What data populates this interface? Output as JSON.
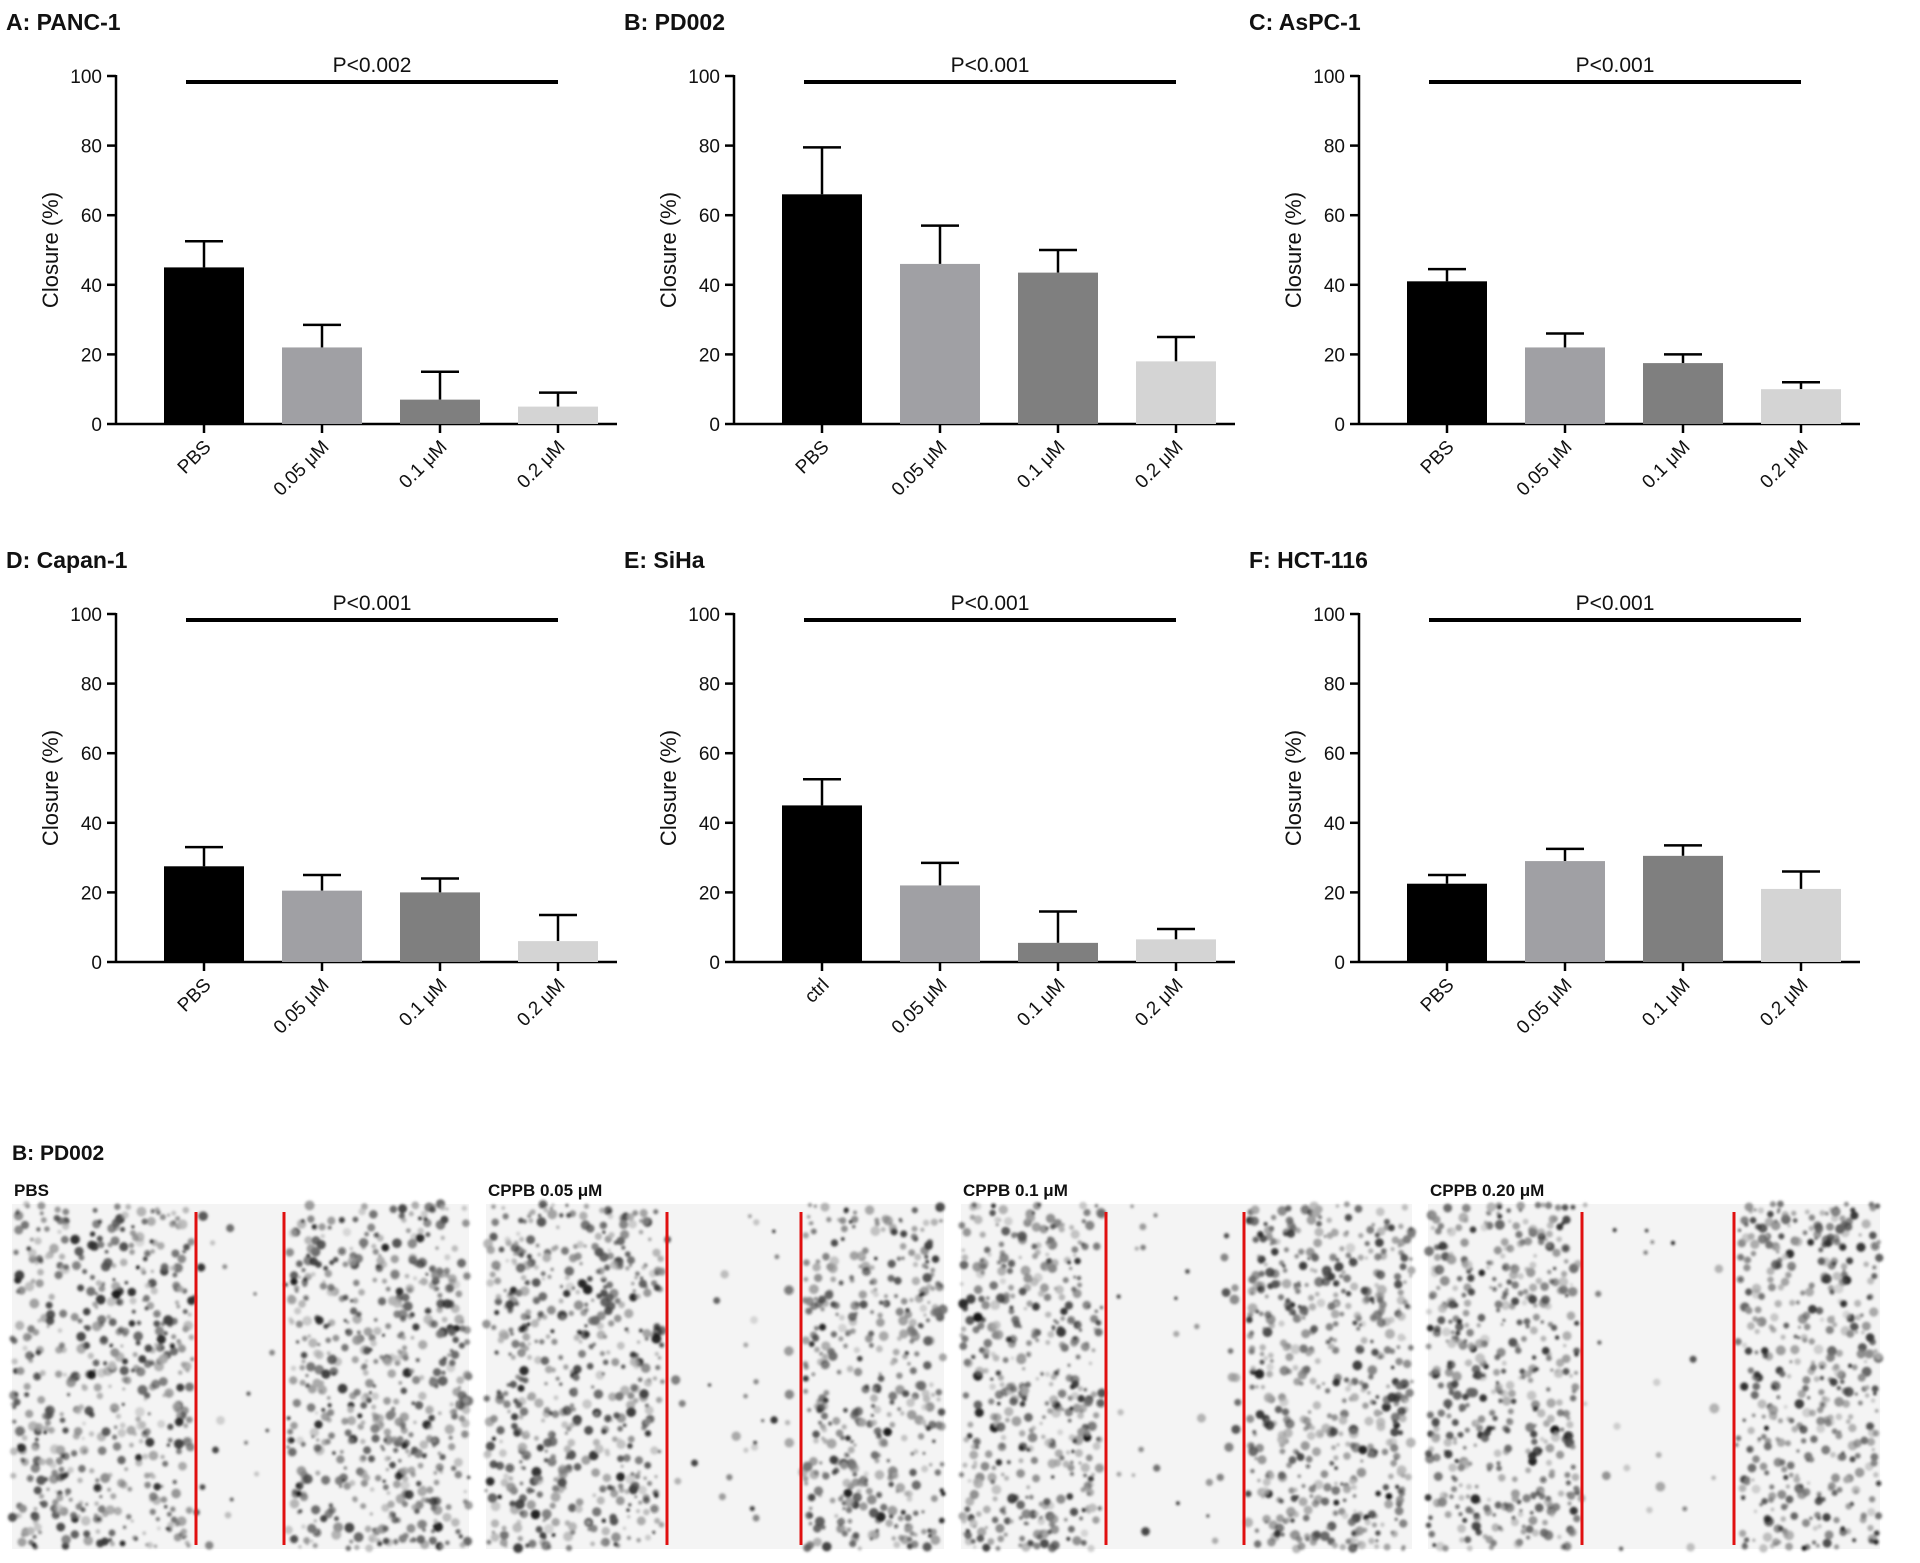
{
  "chart_data": [
    {
      "type": "bar",
      "title": "A: PANC-1",
      "ylabel": "Closure (%)",
      "annotation": "P<0.002",
      "categories": [
        "PBS",
        "0.05 μM",
        "0.1 μM",
        "0.2 μM"
      ],
      "values": [
        45,
        22,
        7,
        5
      ],
      "errors": [
        7.5,
        6.5,
        8,
        4
      ],
      "colors": [
        "#000000",
        "#a0a0a4",
        "#7f7f7f",
        "#d4d4d4"
      ],
      "ylim": [
        0,
        100
      ],
      "yticks": [
        0,
        20,
        40,
        60,
        80,
        100
      ]
    },
    {
      "type": "bar",
      "title": "B: PD002",
      "ylabel": "Closure (%)",
      "annotation": "P<0.001",
      "categories": [
        "PBS",
        "0.05 μM",
        "0.1 μM",
        "0.2 μM"
      ],
      "values": [
        66,
        46,
        43.5,
        18
      ],
      "errors": [
        13.5,
        11,
        6.5,
        7
      ],
      "colors": [
        "#000000",
        "#a0a0a4",
        "#7f7f7f",
        "#d4d4d4"
      ],
      "ylim": [
        0,
        100
      ],
      "yticks": [
        0,
        20,
        40,
        60,
        80,
        100
      ]
    },
    {
      "type": "bar",
      "title": "C: AsPC-1",
      "ylabel": "Closure (%)",
      "annotation": "P<0.001",
      "categories": [
        "PBS",
        "0.05 μM",
        "0.1 μM",
        "0.2 μM"
      ],
      "values": [
        41,
        22,
        17.5,
        10
      ],
      "errors": [
        3.5,
        4,
        2.5,
        2
      ],
      "colors": [
        "#000000",
        "#a0a0a4",
        "#7f7f7f",
        "#d4d4d4"
      ],
      "ylim": [
        0,
        100
      ],
      "yticks": [
        0,
        20,
        40,
        60,
        80,
        100
      ]
    },
    {
      "type": "bar",
      "title": "D: Capan-1",
      "ylabel": "Closure (%)",
      "annotation": "P<0.001",
      "categories": [
        "PBS",
        "0.05 μM",
        "0.1 μM",
        "0.2 μM"
      ],
      "values": [
        27.5,
        20.5,
        20,
        6
      ],
      "errors": [
        5.5,
        4.5,
        4,
        7.5
      ],
      "colors": [
        "#000000",
        "#a0a0a4",
        "#7f7f7f",
        "#d4d4d4"
      ],
      "ylim": [
        0,
        100
      ],
      "yticks": [
        0,
        20,
        40,
        60,
        80,
        100
      ]
    },
    {
      "type": "bar",
      "title": "E: SiHa",
      "ylabel": "Closure (%)",
      "annotation": "P<0.001",
      "categories": [
        "ctrl",
        "0.05 μM",
        "0.1 μM",
        "0.2 μM"
      ],
      "values": [
        45,
        22,
        5.5,
        6.5
      ],
      "errors": [
        7.5,
        6.5,
        9,
        3
      ],
      "colors": [
        "#000000",
        "#a0a0a4",
        "#7f7f7f",
        "#d4d4d4"
      ],
      "ylim": [
        0,
        100
      ],
      "yticks": [
        0,
        20,
        40,
        60,
        80,
        100
      ]
    },
    {
      "type": "bar",
      "title": "F: HCT-116",
      "ylabel": "Closure (%)",
      "annotation": "P<0.001",
      "categories": [
        "PBS",
        "0.05 μM",
        "0.1 μM",
        "0.2 μM"
      ],
      "values": [
        22.5,
        29,
        30.5,
        21
      ],
      "errors": [
        2.5,
        3.5,
        3,
        5
      ],
      "colors": [
        "#000000",
        "#a0a0a4",
        "#7f7f7f",
        "#d4d4d4"
      ],
      "ylim": [
        0,
        100
      ],
      "yticks": [
        0,
        20,
        40,
        60,
        80,
        100
      ]
    }
  ],
  "micrographs": {
    "title": "B: PD002",
    "panels": [
      "PBS",
      "CPPB 0.05 μM",
      "CPPB 0.1 μM",
      "CPPB 0.20 μM"
    ]
  }
}
